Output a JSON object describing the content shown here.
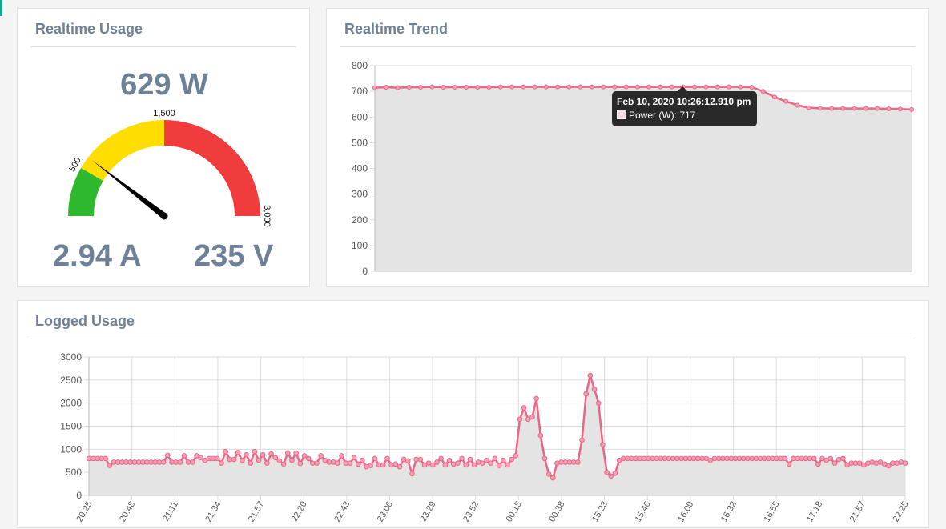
{
  "colors": {
    "accent": "#f06384",
    "fill": "#e4e4e4",
    "gauge_green": "#2eb82e",
    "gauge_yellow": "#ffdd00",
    "gauge_red": "#f03c3c",
    "title_color": "#6e8196"
  },
  "realtime_usage": {
    "title": "Realtime Usage",
    "power": "629 W",
    "current": "2.94 A",
    "voltage": "235 V",
    "gauge": {
      "value": 629,
      "min": 0,
      "max": 3000,
      "labels": [
        "500",
        "1,500",
        "3,000"
      ],
      "zones": [
        {
          "from": 0,
          "to": 500,
          "color": "green"
        },
        {
          "from": 500,
          "to": 1500,
          "color": "yellow"
        },
        {
          "from": 1500,
          "to": 3000,
          "color": "red"
        }
      ]
    }
  },
  "realtime_trend": {
    "title": "Realtime Trend",
    "tooltip": {
      "title": "Feb 10, 2020 10:26:12.910 pm",
      "series_label": "Power (W): 717"
    },
    "chart_data": {
      "type": "area",
      "series": [
        {
          "values": [
            714,
            716,
            714,
            716,
            716,
            717,
            716,
            716,
            716,
            716,
            716,
            717,
            717,
            717,
            717,
            717,
            717,
            717,
            717,
            717,
            717,
            717,
            717,
            717,
            717,
            717,
            717,
            717,
            717,
            717,
            717,
            717,
            717,
            716,
            700,
            678,
            661,
            646,
            636,
            634,
            633,
            633,
            633,
            633,
            633,
            632,
            631,
            629
          ]
        }
      ],
      "ylim": [
        0,
        800
      ],
      "yticks": [
        "0",
        "100",
        "200",
        "300",
        "400",
        "500",
        "600",
        "700",
        "800"
      ],
      "grid": true
    }
  },
  "logged_usage": {
    "title": "Logged Usage",
    "chart_data": {
      "type": "area",
      "x_labels": [
        "20:25",
        "20:48",
        "21:11",
        "21:34",
        "21:57",
        "22:20",
        "22:43",
        "23:06",
        "23:29",
        "23:52",
        "00:15",
        "00:38",
        "15:23",
        "15:46",
        "16:09",
        "16:32",
        "16:55",
        "17:18",
        "21:57",
        "22:25"
      ],
      "series": [
        {
          "values": [
            800,
            800,
            800,
            800,
            800,
            650,
            720,
            720,
            720,
            720,
            720,
            720,
            720,
            720,
            720,
            720,
            720,
            720,
            720,
            870,
            720,
            720,
            720,
            860,
            720,
            720,
            860,
            820,
            760,
            800,
            800,
            800,
            700,
            950,
            780,
            780,
            930,
            760,
            880,
            700,
            950,
            760,
            880,
            700,
            900,
            820,
            750,
            680,
            920,
            760,
            920,
            690,
            860,
            800,
            700,
            700,
            860,
            760,
            720,
            720,
            700,
            860,
            700,
            700,
            820,
            680,
            760,
            620,
            650,
            800,
            660,
            660,
            800,
            660,
            680,
            620,
            780,
            750,
            470,
            780,
            780,
            660,
            700,
            660,
            720,
            800,
            660,
            760,
            680,
            700,
            800,
            660,
            780,
            660,
            720,
            700,
            760,
            700,
            800,
            650,
            760,
            660,
            780,
            860,
            1650,
            1900,
            1650,
            1700,
            2100,
            1300,
            800,
            460,
            380,
            700,
            720,
            720,
            720,
            720,
            720,
            1200,
            2200,
            2600,
            2300,
            2000,
            1100,
            500,
            420,
            480,
            760,
            800,
            800,
            800,
            800,
            800,
            800,
            800,
            800,
            800,
            800,
            800,
            800,
            800,
            800,
            800,
            800,
            800,
            800,
            800,
            800,
            800,
            760,
            800,
            800,
            800,
            800,
            800,
            800,
            800,
            800,
            800,
            800,
            800,
            800,
            800,
            800,
            800,
            800,
            800,
            800,
            680,
            800,
            800,
            800,
            800,
            800,
            800,
            680,
            800,
            760,
            800,
            700,
            780,
            800,
            660,
            700,
            700,
            700,
            660,
            700,
            720,
            700,
            720,
            680,
            640,
            700,
            700,
            720,
            700
          ]
        }
      ],
      "ylim": [
        0,
        3000
      ],
      "yticks": [
        "0",
        "500",
        "1000",
        "1500",
        "2000",
        "2500",
        "3000"
      ],
      "grid": true
    }
  }
}
